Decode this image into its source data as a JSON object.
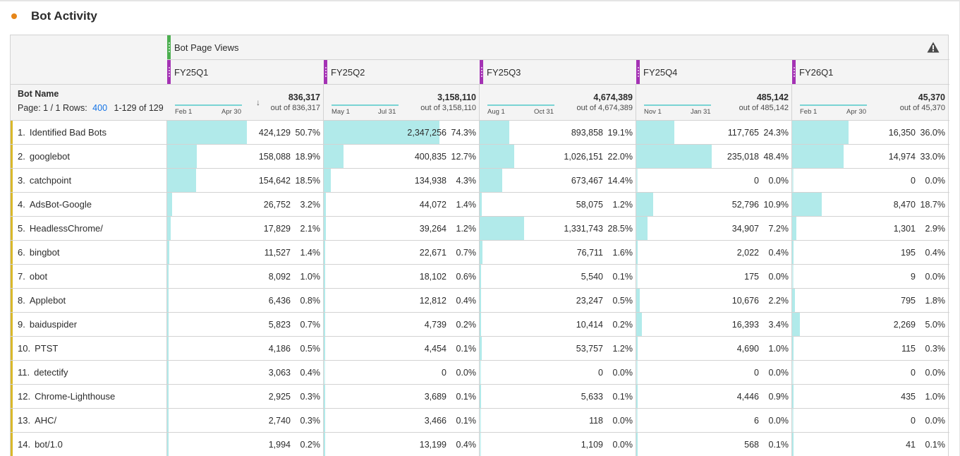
{
  "panel": {
    "title": "Bot Activity",
    "status_dot_color": "#e68619"
  },
  "table": {
    "metric_header": "Bot Page Views",
    "warning_icon": "warning-icon",
    "dimension_header": "Bot Name",
    "paging": {
      "page_label": "Page: 1 / 1",
      "rows_label": "Rows:",
      "rows_value": "400",
      "range": "1-129 of 129"
    },
    "bar_color": "#b1eaea",
    "row_accent_color": "#d9b82a",
    "columns": [
      {
        "segment": "FY25Q1",
        "spark_start": "Feb 1",
        "spark_end": "Apr 30",
        "total": "836,317",
        "out_of": "out of 836,317",
        "sorted": true,
        "sort_icon": "arrow-down-icon"
      },
      {
        "segment": "FY25Q2",
        "spark_start": "May 1",
        "spark_end": "Jul 31",
        "total": "3,158,110",
        "out_of": "out of 3,158,110",
        "sorted": false
      },
      {
        "segment": "FY25Q3",
        "spark_start": "Aug 1",
        "spark_end": "Oct 31",
        "total": "4,674,389",
        "out_of": "out of 4,674,389",
        "sorted": false
      },
      {
        "segment": "FY25Q4",
        "spark_start": "Nov 1",
        "spark_end": "Jan 31",
        "total": "485,142",
        "out_of": "out of 485,142",
        "sorted": false
      },
      {
        "segment": "FY26Q1",
        "spark_start": "Feb 1",
        "spark_end": "Apr 30",
        "total": "45,370",
        "out_of": "out of 45,370",
        "sorted": false
      }
    ],
    "rows": [
      {
        "rank": "1.",
        "name": "Identified Bad Bots",
        "cells": [
          {
            "value": "424,129",
            "pct": "50.7%",
            "share": 50.7
          },
          {
            "value": "2,347,256",
            "pct": "74.3%",
            "share": 74.3
          },
          {
            "value": "893,858",
            "pct": "19.1%",
            "share": 19.1
          },
          {
            "value": "117,765",
            "pct": "24.3%",
            "share": 24.3
          },
          {
            "value": "16,350",
            "pct": "36.0%",
            "share": 36.0
          }
        ]
      },
      {
        "rank": "2.",
        "name": "googlebot",
        "cells": [
          {
            "value": "158,088",
            "pct": "18.9%",
            "share": 18.9
          },
          {
            "value": "400,835",
            "pct": "12.7%",
            "share": 12.7
          },
          {
            "value": "1,026,151",
            "pct": "22.0%",
            "share": 22.0
          },
          {
            "value": "235,018",
            "pct": "48.4%",
            "share": 48.4
          },
          {
            "value": "14,974",
            "pct": "33.0%",
            "share": 33.0
          }
        ]
      },
      {
        "rank": "3.",
        "name": "catchpoint",
        "cells": [
          {
            "value": "154,642",
            "pct": "18.5%",
            "share": 18.5
          },
          {
            "value": "134,938",
            "pct": "4.3%",
            "share": 4.3
          },
          {
            "value": "673,467",
            "pct": "14.4%",
            "share": 14.4
          },
          {
            "value": "0",
            "pct": "0.0%",
            "share": 0
          },
          {
            "value": "0",
            "pct": "0.0%",
            "share": 0
          }
        ]
      },
      {
        "rank": "4.",
        "name": "AdsBot-Google",
        "cells": [
          {
            "value": "26,752",
            "pct": "3.2%",
            "share": 3.2
          },
          {
            "value": "44,072",
            "pct": "1.4%",
            "share": 1.4
          },
          {
            "value": "58,075",
            "pct": "1.2%",
            "share": 1.2
          },
          {
            "value": "52,796",
            "pct": "10.9%",
            "share": 10.9
          },
          {
            "value": "8,470",
            "pct": "18.7%",
            "share": 18.7
          }
        ]
      },
      {
        "rank": "5.",
        "name": "HeadlessChrome/",
        "cells": [
          {
            "value": "17,829",
            "pct": "2.1%",
            "share": 2.1
          },
          {
            "value": "39,264",
            "pct": "1.2%",
            "share": 1.2
          },
          {
            "value": "1,331,743",
            "pct": "28.5%",
            "share": 28.5
          },
          {
            "value": "34,907",
            "pct": "7.2%",
            "share": 7.2
          },
          {
            "value": "1,301",
            "pct": "2.9%",
            "share": 2.9
          }
        ]
      },
      {
        "rank": "6.",
        "name": "bingbot",
        "cells": [
          {
            "value": "11,527",
            "pct": "1.4%",
            "share": 1.4
          },
          {
            "value": "22,671",
            "pct": "0.7%",
            "share": 0.7
          },
          {
            "value": "76,711",
            "pct": "1.6%",
            "share": 1.6
          },
          {
            "value": "2,022",
            "pct": "0.4%",
            "share": 0.4
          },
          {
            "value": "195",
            "pct": "0.4%",
            "share": 0.4
          }
        ]
      },
      {
        "rank": "7.",
        "name": "obot",
        "cells": [
          {
            "value": "8,092",
            "pct": "1.0%",
            "share": 1.0
          },
          {
            "value": "18,102",
            "pct": "0.6%",
            "share": 0.6
          },
          {
            "value": "5,540",
            "pct": "0.1%",
            "share": 0.1
          },
          {
            "value": "175",
            "pct": "0.0%",
            "share": 0.0
          },
          {
            "value": "9",
            "pct": "0.0%",
            "share": 0.0
          }
        ]
      },
      {
        "rank": "8.",
        "name": "Applebot",
        "cells": [
          {
            "value": "6,436",
            "pct": "0.8%",
            "share": 0.8
          },
          {
            "value": "12,812",
            "pct": "0.4%",
            "share": 0.4
          },
          {
            "value": "23,247",
            "pct": "0.5%",
            "share": 0.5
          },
          {
            "value": "10,676",
            "pct": "2.2%",
            "share": 2.2
          },
          {
            "value": "795",
            "pct": "1.8%",
            "share": 1.8
          }
        ]
      },
      {
        "rank": "9.",
        "name": "baiduspider",
        "cells": [
          {
            "value": "5,823",
            "pct": "0.7%",
            "share": 0.7
          },
          {
            "value": "4,739",
            "pct": "0.2%",
            "share": 0.2
          },
          {
            "value": "10,414",
            "pct": "0.2%",
            "share": 0.2
          },
          {
            "value": "16,393",
            "pct": "3.4%",
            "share": 3.4
          },
          {
            "value": "2,269",
            "pct": "5.0%",
            "share": 5.0
          }
        ]
      },
      {
        "rank": "10.",
        "name": "PTST",
        "cells": [
          {
            "value": "4,186",
            "pct": "0.5%",
            "share": 0.5
          },
          {
            "value": "4,454",
            "pct": "0.1%",
            "share": 0.1
          },
          {
            "value": "53,757",
            "pct": "1.2%",
            "share": 1.2
          },
          {
            "value": "4,690",
            "pct": "1.0%",
            "share": 1.0
          },
          {
            "value": "115",
            "pct": "0.3%",
            "share": 0.3
          }
        ]
      },
      {
        "rank": "11.",
        "name": "detectify",
        "cells": [
          {
            "value": "3,063",
            "pct": "0.4%",
            "share": 0.4
          },
          {
            "value": "0",
            "pct": "0.0%",
            "share": 0
          },
          {
            "value": "0",
            "pct": "0.0%",
            "share": 0
          },
          {
            "value": "0",
            "pct": "0.0%",
            "share": 0
          },
          {
            "value": "0",
            "pct": "0.0%",
            "share": 0
          }
        ]
      },
      {
        "rank": "12.",
        "name": "Chrome-Lighthouse",
        "cells": [
          {
            "value": "2,925",
            "pct": "0.3%",
            "share": 0.3
          },
          {
            "value": "3,689",
            "pct": "0.1%",
            "share": 0.1
          },
          {
            "value": "5,633",
            "pct": "0.1%",
            "share": 0.1
          },
          {
            "value": "4,446",
            "pct": "0.9%",
            "share": 0.9
          },
          {
            "value": "435",
            "pct": "1.0%",
            "share": 1.0
          }
        ]
      },
      {
        "rank": "13.",
        "name": "AHC/",
        "cells": [
          {
            "value": "2,740",
            "pct": "0.3%",
            "share": 0.3
          },
          {
            "value": "3,466",
            "pct": "0.1%",
            "share": 0.1
          },
          {
            "value": "118",
            "pct": "0.0%",
            "share": 0.0
          },
          {
            "value": "6",
            "pct": "0.0%",
            "share": 0.0
          },
          {
            "value": "0",
            "pct": "0.0%",
            "share": 0
          }
        ]
      },
      {
        "rank": "14.",
        "name": "bot/1.0",
        "cells": [
          {
            "value": "1,994",
            "pct": "0.2%",
            "share": 0.2
          },
          {
            "value": "13,199",
            "pct": "0.4%",
            "share": 0.4
          },
          {
            "value": "1,109",
            "pct": "0.0%",
            "share": 0.0
          },
          {
            "value": "568",
            "pct": "0.1%",
            "share": 0.1
          },
          {
            "value": "41",
            "pct": "0.1%",
            "share": 0.1
          }
        ]
      }
    ]
  }
}
